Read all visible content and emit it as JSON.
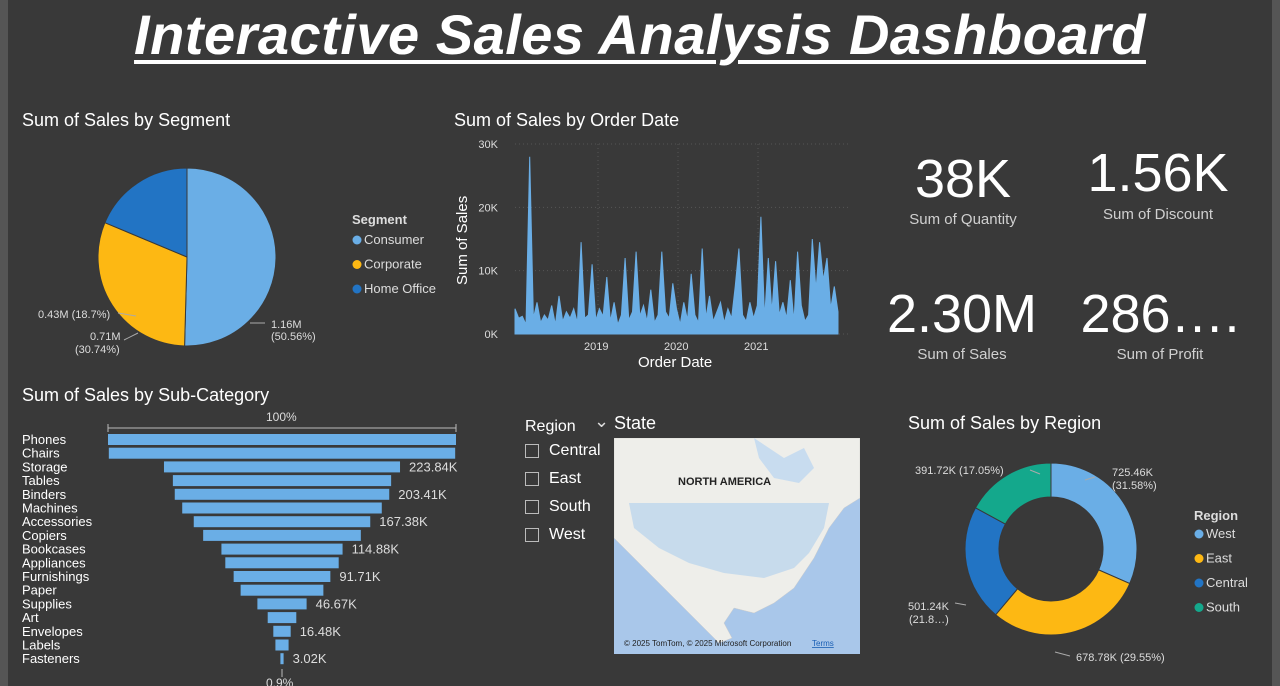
{
  "title": "Interactive Sales Analysis Dashboard",
  "colors": {
    "light_blue": "#6aaee6",
    "yellow": "#fdb813",
    "dark_blue": "#2274c4",
    "teal": "#14a88c",
    "background": "#393939"
  },
  "segment_chart": {
    "title": "Sum of Sales by Segment",
    "legend_title": "Segment",
    "labels": {
      "consumer": "1.16M",
      "consumer_pct": "(50.56%)",
      "corporate": "0.71M",
      "corporate_pct": "(30.74%)",
      "home_office": "0.43M (18.7%)"
    }
  },
  "date_chart": {
    "title": "Sum of Sales by Order Date",
    "xlabel": "Order Date",
    "ylabel": "Sum of Sales",
    "yticks": [
      "30K",
      "20K",
      "10K",
      "0K"
    ],
    "xticks": [
      "2019",
      "2020",
      "2021"
    ]
  },
  "kpis": [
    {
      "value": "38K",
      "label": "Sum of Quantity"
    },
    {
      "value": "1.56K",
      "label": "Sum of Discount"
    },
    {
      "value": "2.30M",
      "label": "Sum of Sales"
    },
    {
      "value": "286….",
      "label": "Sum of Profit"
    }
  ],
  "subcat_chart": {
    "title": "Sum of Sales by Sub-Category",
    "top_label": "100%",
    "bottom_label": "0.9%"
  },
  "slicer": {
    "region_label": "Region",
    "state_label": "State",
    "options": [
      "Central",
      "East",
      "South",
      "West"
    ]
  },
  "map": {
    "label": "NORTH AMERICA",
    "attribution": "© 2025 TomTom, © 2025 Microsoft Corporation",
    "terms": "Terms"
  },
  "region_chart": {
    "title": "Sum of Sales by Region",
    "legend_title": "Region",
    "labels": {
      "west": "725.46K",
      "west_pct": "(31.58%)",
      "east": "678.78K (29.55%)",
      "central": "501.24K",
      "central_pct": "(21.8…)",
      "south": "391.72K (17.05%)"
    }
  },
  "chart_data": [
    {
      "type": "pie",
      "title": "Sum of Sales by Segment",
      "categories": [
        "Consumer",
        "Corporate",
        "Home Office"
      ],
      "values": [
        1.16,
        0.71,
        0.43
      ],
      "percent": [
        50.56,
        30.74,
        18.7
      ],
      "unit": "M",
      "legend": "right"
    },
    {
      "type": "line",
      "title": "Sum of Sales by Order Date",
      "xlabel": "Order Date",
      "ylabel": "Sum of Sales",
      "ylim": [
        0,
        30000
      ],
      "xticks": [
        "2019",
        "2020",
        "2021"
      ],
      "series": [
        {
          "values": [
            4000,
            2500,
            2800,
            1500,
            28000,
            2500,
            5000,
            1800,
            3000,
            2200,
            4500,
            1500,
            6000,
            2000,
            3500,
            2500,
            4000,
            1800,
            14500,
            2500,
            3000,
            11000,
            2200,
            4000,
            2800,
            9000,
            2000,
            5000,
            1500,
            3000,
            12000,
            2200,
            3500,
            13000,
            2800,
            4500,
            2000,
            7000,
            1800,
            3000,
            13000,
            3500,
            2500,
            8000,
            4000,
            1500,
            5000,
            2200,
            9500,
            3000,
            1800,
            13500,
            2500,
            6000,
            2000,
            3500,
            5000,
            1800,
            4000,
            2500,
            7500,
            13500,
            3000,
            2000,
            5000,
            2500,
            4500,
            18500,
            2500,
            12000,
            3500,
            11500,
            3000,
            5000,
            2500,
            8500,
            2000,
            13000,
            4500,
            2000,
            3000,
            15000,
            7000,
            14500,
            8500,
            12000,
            4000,
            7500,
            3500
          ]
        }
      ]
    },
    {
      "type": "bar",
      "title": "Sum of Sales by Sub-Category",
      "categories": [
        "Phones",
        "Chairs",
        "Storage",
        "Tables",
        "Binders",
        "Machines",
        "Accessories",
        "Copiers",
        "Bookcases",
        "Appliances",
        "Furnishings",
        "Paper",
        "Supplies",
        "Art",
        "Envelopes",
        "Labels",
        "Fasteners"
      ],
      "values": [
        330.01,
        328.45,
        223.84,
        206.97,
        203.41,
        189.24,
        167.38,
        149.53,
        114.88,
        107.53,
        91.71,
        78.48,
        46.67,
        27.12,
        16.48,
        12.49,
        3.02
      ],
      "unit": "K",
      "data_labels": {
        "2": "223.84K",
        "4": "203.41K",
        "6": "167.38K",
        "8": "114.88K",
        "10": "91.71K",
        "12": "46.67K",
        "14": "16.48K",
        "16": "3.02K"
      },
      "style": "funnel"
    },
    {
      "type": "pie",
      "title": "Sum of Sales by Region",
      "categories": [
        "West",
        "East",
        "Central",
        "South"
      ],
      "values": [
        725.46,
        678.78,
        501.24,
        391.72
      ],
      "percent": [
        31.58,
        29.55,
        21.8,
        17.05
      ],
      "unit": "K",
      "legend": "right",
      "style": "donut"
    }
  ]
}
